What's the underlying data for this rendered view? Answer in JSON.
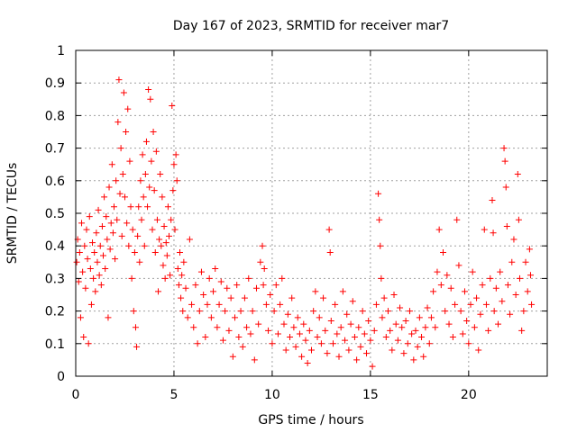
{
  "chart_data": {
    "type": "scatter",
    "title": "Day 167 of 2023, SRMTID for receiver mar7",
    "xlabel": "GPS time / hours",
    "ylabel": "SRMTID / TECUs",
    "xlim": [
      0,
      24
    ],
    "ylim": [
      0,
      1
    ],
    "x_ticks": [
      0,
      5,
      10,
      15,
      20
    ],
    "y_ticks": [
      0,
      0.1,
      0.2,
      0.3,
      0.4,
      0.5,
      0.6,
      0.7,
      0.8,
      0.9,
      1
    ],
    "x_tick_labels": [
      "0",
      "5",
      "10",
      "15",
      "20"
    ],
    "y_tick_labels": [
      "0",
      "0.1",
      "0.2",
      "0.3",
      "0.4",
      "0.5",
      "0.6",
      "0.7",
      "0.8",
      "0.9",
      "1"
    ],
    "grid": true,
    "marker": "+",
    "series": [
      {
        "name": "SRMTID",
        "color": "#ff0000",
        "points": [
          [
            0.05,
            0.35
          ],
          [
            0.1,
            0.42
          ],
          [
            0.15,
            0.29
          ],
          [
            0.2,
            0.38
          ],
          [
            0.25,
            0.18
          ],
          [
            0.3,
            0.47
          ],
          [
            0.35,
            0.32
          ],
          [
            0.4,
            0.12
          ],
          [
            0.45,
            0.4
          ],
          [
            0.5,
            0.27
          ],
          [
            0.55,
            0.45
          ],
          [
            0.6,
            0.36
          ],
          [
            0.65,
            0.1
          ],
          [
            0.7,
            0.49
          ],
          [
            0.75,
            0.33
          ],
          [
            0.8,
            0.22
          ],
          [
            0.85,
            0.41
          ],
          [
            0.9,
            0.3
          ],
          [
            0.95,
            0.38
          ],
          [
            1.0,
            0.26
          ],
          [
            1.05,
            0.44
          ],
          [
            1.1,
            0.35
          ],
          [
            1.15,
            0.51
          ],
          [
            1.2,
            0.31
          ],
          [
            1.25,
            0.4
          ],
          [
            1.3,
            0.28
          ],
          [
            1.35,
            0.46
          ],
          [
            1.4,
            0.37
          ],
          [
            1.45,
            0.55
          ],
          [
            1.5,
            0.33
          ],
          [
            1.55,
            0.49
          ],
          [
            1.6,
            0.42
          ],
          [
            1.65,
            0.18
          ],
          [
            1.7,
            0.58
          ],
          [
            1.75,
            0.39
          ],
          [
            1.8,
            0.47
          ],
          [
            1.85,
            0.65
          ],
          [
            1.9,
            0.44
          ],
          [
            1.95,
            0.52
          ],
          [
            2.0,
            0.36
          ],
          [
            2.05,
            0.6
          ],
          [
            2.1,
            0.48
          ],
          [
            2.15,
            0.78
          ],
          [
            2.2,
            0.91
          ],
          [
            2.25,
            0.56
          ],
          [
            2.3,
            0.7
          ],
          [
            2.35,
            0.43
          ],
          [
            2.4,
            0.62
          ],
          [
            2.45,
            0.87
          ],
          [
            2.5,
            0.55
          ],
          [
            2.55,
            0.75
          ],
          [
            2.6,
            0.47
          ],
          [
            2.65,
            0.82
          ],
          [
            2.7,
            0.4
          ],
          [
            2.75,
            0.66
          ],
          [
            2.8,
            0.52
          ],
          [
            2.85,
            0.3
          ],
          [
            2.9,
            0.45
          ],
          [
            2.95,
            0.2
          ],
          [
            3.0,
            0.38
          ],
          [
            3.05,
            0.15
          ],
          [
            3.1,
            0.09
          ],
          [
            3.15,
            0.43
          ],
          [
            3.2,
            0.52
          ],
          [
            3.25,
            0.35
          ],
          [
            3.3,
            0.6
          ],
          [
            3.35,
            0.48
          ],
          [
            3.4,
            0.68
          ],
          [
            3.45,
            0.55
          ],
          [
            3.5,
            0.4
          ],
          [
            3.55,
            0.62
          ],
          [
            3.6,
            0.72
          ],
          [
            3.65,
            0.52
          ],
          [
            3.7,
            0.88
          ],
          [
            3.75,
            0.58
          ],
          [
            3.8,
            0.85
          ],
          [
            3.85,
            0.66
          ],
          [
            3.9,
            0.45
          ],
          [
            3.95,
            0.75
          ],
          [
            4.0,
            0.57
          ],
          [
            4.05,
            0.38
          ],
          [
            4.1,
            0.69
          ],
          [
            4.15,
            0.48
          ],
          [
            4.2,
            0.26
          ],
          [
            4.25,
            0.42
          ],
          [
            4.3,
            0.62
          ],
          [
            4.35,
            0.4
          ],
          [
            4.4,
            0.55
          ],
          [
            4.45,
            0.34
          ],
          [
            4.5,
            0.46
          ],
          [
            4.55,
            0.3
          ],
          [
            4.6,
            0.41
          ],
          [
            4.65,
            0.37
          ],
          [
            4.7,
            0.52
          ],
          [
            4.75,
            0.43
          ],
          [
            4.8,
            0.31
          ],
          [
            4.85,
            0.48
          ],
          [
            4.9,
            0.83
          ],
          [
            4.95,
            0.57
          ],
          [
            5.0,
            0.65
          ],
          [
            5.05,
            0.45
          ],
          [
            5.1,
            0.68
          ],
          [
            5.15,
            0.6
          ],
          [
            5.2,
            0.33
          ],
          [
            5.25,
            0.28
          ],
          [
            5.3,
            0.38
          ],
          [
            5.35,
            0.24
          ],
          [
            5.4,
            0.31
          ],
          [
            5.45,
            0.2
          ],
          [
            5.5,
            0.35
          ],
          [
            5.6,
            0.27
          ],
          [
            5.7,
            0.18
          ],
          [
            5.8,
            0.42
          ],
          [
            5.9,
            0.22
          ],
          [
            6.0,
            0.15
          ],
          [
            6.1,
            0.28
          ],
          [
            6.2,
            0.1
          ],
          [
            6.3,
            0.2
          ],
          [
            6.4,
            0.32
          ],
          [
            6.5,
            0.25
          ],
          [
            6.6,
            0.12
          ],
          [
            6.7,
            0.22
          ],
          [
            6.8,
            0.3
          ],
          [
            6.9,
            0.18
          ],
          [
            7.0,
            0.26
          ],
          [
            7.1,
            0.33
          ],
          [
            7.2,
            0.15
          ],
          [
            7.3,
            0.22
          ],
          [
            7.4,
            0.29
          ],
          [
            7.5,
            0.11
          ],
          [
            7.6,
            0.2
          ],
          [
            7.7,
            0.27
          ],
          [
            7.8,
            0.14
          ],
          [
            7.9,
            0.24
          ],
          [
            8.0,
            0.06
          ],
          [
            8.1,
            0.18
          ],
          [
            8.2,
            0.28
          ],
          [
            8.3,
            0.12
          ],
          [
            8.4,
            0.2
          ],
          [
            8.5,
            0.09
          ],
          [
            8.6,
            0.24
          ],
          [
            8.7,
            0.15
          ],
          [
            8.8,
            0.3
          ],
          [
            8.9,
            0.13
          ],
          [
            9.0,
            0.2
          ],
          [
            9.1,
            0.05
          ],
          [
            9.2,
            0.27
          ],
          [
            9.3,
            0.16
          ],
          [
            9.4,
            0.35
          ],
          [
            9.5,
            0.4
          ],
          [
            9.55,
            0.28
          ],
          [
            9.6,
            0.33
          ],
          [
            9.7,
            0.22
          ],
          [
            9.8,
            0.14
          ],
          [
            9.9,
            0.25
          ],
          [
            10.0,
            0.1
          ],
          [
            10.1,
            0.2
          ],
          [
            10.2,
            0.28
          ],
          [
            10.3,
            0.13
          ],
          [
            10.4,
            0.22
          ],
          [
            10.5,
            0.3
          ],
          [
            10.6,
            0.16
          ],
          [
            10.7,
            0.08
          ],
          [
            10.8,
            0.19
          ],
          [
            10.9,
            0.12
          ],
          [
            11.0,
            0.24
          ],
          [
            11.1,
            0.15
          ],
          [
            11.2,
            0.09
          ],
          [
            11.3,
            0.18
          ],
          [
            11.4,
            0.13
          ],
          [
            11.5,
            0.06
          ],
          [
            11.6,
            0.16
          ],
          [
            11.7,
            0.11
          ],
          [
            11.8,
            0.04
          ],
          [
            11.9,
            0.14
          ],
          [
            12.0,
            0.08
          ],
          [
            12.1,
            0.2
          ],
          [
            12.2,
            0.26
          ],
          [
            12.3,
            0.12
          ],
          [
            12.4,
            0.18
          ],
          [
            12.5,
            0.1
          ],
          [
            12.6,
            0.24
          ],
          [
            12.7,
            0.14
          ],
          [
            12.8,
            0.07
          ],
          [
            12.9,
            0.45
          ],
          [
            12.95,
            0.38
          ],
          [
            13.0,
            0.17
          ],
          [
            13.1,
            0.1
          ],
          [
            13.2,
            0.22
          ],
          [
            13.3,
            0.13
          ],
          [
            13.4,
            0.06
          ],
          [
            13.5,
            0.15
          ],
          [
            13.6,
            0.26
          ],
          [
            13.7,
            0.11
          ],
          [
            13.8,
            0.19
          ],
          [
            13.9,
            0.08
          ],
          [
            14.0,
            0.16
          ],
          [
            14.1,
            0.23
          ],
          [
            14.2,
            0.12
          ],
          [
            14.3,
            0.05
          ],
          [
            14.4,
            0.15
          ],
          [
            14.5,
            0.09
          ],
          [
            14.6,
            0.2
          ],
          [
            14.7,
            0.13
          ],
          [
            14.8,
            0.07
          ],
          [
            14.9,
            0.17
          ],
          [
            15.0,
            0.11
          ],
          [
            15.1,
            0.03
          ],
          [
            15.2,
            0.14
          ],
          [
            15.3,
            0.22
          ],
          [
            15.4,
            0.56
          ],
          [
            15.45,
            0.48
          ],
          [
            15.5,
            0.4
          ],
          [
            15.55,
            0.3
          ],
          [
            15.6,
            0.18
          ],
          [
            15.7,
            0.24
          ],
          [
            15.8,
            0.12
          ],
          [
            15.9,
            0.2
          ],
          [
            16.0,
            0.14
          ],
          [
            16.1,
            0.08
          ],
          [
            16.2,
            0.25
          ],
          [
            16.3,
            0.16
          ],
          [
            16.4,
            0.11
          ],
          [
            16.5,
            0.21
          ],
          [
            16.6,
            0.15
          ],
          [
            16.7,
            0.07
          ],
          [
            16.8,
            0.17
          ],
          [
            16.9,
            0.1
          ],
          [
            17.0,
            0.2
          ],
          [
            17.1,
            0.13
          ],
          [
            17.2,
            0.05
          ],
          [
            17.3,
            0.14
          ],
          [
            17.4,
            0.09
          ],
          [
            17.5,
            0.18
          ],
          [
            17.6,
            0.12
          ],
          [
            17.7,
            0.06
          ],
          [
            17.8,
            0.15
          ],
          [
            17.9,
            0.21
          ],
          [
            18.0,
            0.1
          ],
          [
            18.1,
            0.18
          ],
          [
            18.2,
            0.26
          ],
          [
            18.3,
            0.15
          ],
          [
            18.4,
            0.32
          ],
          [
            18.5,
            0.45
          ],
          [
            18.6,
            0.28
          ],
          [
            18.7,
            0.38
          ],
          [
            18.8,
            0.2
          ],
          [
            18.9,
            0.31
          ],
          [
            19.0,
            0.16
          ],
          [
            19.1,
            0.27
          ],
          [
            19.2,
            0.12
          ],
          [
            19.3,
            0.22
          ],
          [
            19.4,
            0.48
          ],
          [
            19.5,
            0.34
          ],
          [
            19.6,
            0.2
          ],
          [
            19.7,
            0.13
          ],
          [
            19.8,
            0.26
          ],
          [
            19.9,
            0.17
          ],
          [
            20.0,
            0.1
          ],
          [
            20.1,
            0.22
          ],
          [
            20.2,
            0.32
          ],
          [
            20.3,
            0.15
          ],
          [
            20.4,
            0.24
          ],
          [
            20.5,
            0.08
          ],
          [
            20.6,
            0.19
          ],
          [
            20.7,
            0.28
          ],
          [
            20.8,
            0.45
          ],
          [
            20.9,
            0.22
          ],
          [
            21.0,
            0.14
          ],
          [
            21.1,
            0.3
          ],
          [
            21.2,
            0.54
          ],
          [
            21.25,
            0.44
          ],
          [
            21.3,
            0.2
          ],
          [
            21.4,
            0.27
          ],
          [
            21.5,
            0.16
          ],
          [
            21.6,
            0.32
          ],
          [
            21.7,
            0.23
          ],
          [
            21.8,
            0.7
          ],
          [
            21.85,
            0.66
          ],
          [
            21.9,
            0.58
          ],
          [
            21.95,
            0.46
          ],
          [
            22.0,
            0.28
          ],
          [
            22.1,
            0.19
          ],
          [
            22.2,
            0.35
          ],
          [
            22.3,
            0.42
          ],
          [
            22.4,
            0.25
          ],
          [
            22.5,
            0.62
          ],
          [
            22.55,
            0.48
          ],
          [
            22.6,
            0.3
          ],
          [
            22.7,
            0.14
          ],
          [
            22.8,
            0.2
          ],
          [
            22.9,
            0.35
          ],
          [
            23.0,
            0.26
          ],
          [
            23.1,
            0.39
          ],
          [
            23.15,
            0.31
          ],
          [
            23.2,
            0.22
          ]
        ]
      }
    ]
  }
}
